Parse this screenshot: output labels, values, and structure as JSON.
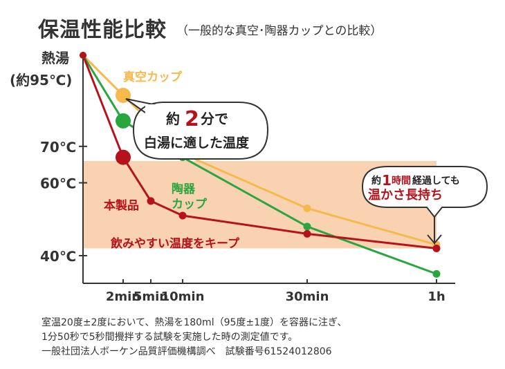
{
  "title": "保温性能比較",
  "subtitle": "（一般的な真空･陶器カップとの比較）",
  "y_top_label_1": "熱湯",
  "y_top_label_2": "(約95℃)",
  "colors": {
    "product": "#b5121b",
    "vacuum": "#f6b94c",
    "ceramic": "#2aa640",
    "band": "#f9d2b2",
    "axis": "#333333"
  },
  "chart_data": {
    "type": "line",
    "title": "保温性能比較",
    "ytick_labels": [
      "70℃",
      "60℃",
      "40℃"
    ],
    "xtick_labels": [
      "2min",
      "5min",
      "10min",
      "30min",
      "1h"
    ],
    "x_ticks_min": [
      2,
      5,
      10,
      30,
      60
    ],
    "ylim": [
      32,
      95
    ],
    "band": {
      "from": 42,
      "to": 66,
      "label": "飲みやすい温度をキープ"
    },
    "series": [
      {
        "name": "真空カップ",
        "key": "vacuum",
        "x": [
          0,
          2,
          10,
          30,
          60
        ],
        "y": [
          95,
          84,
          68,
          53,
          43
        ]
      },
      {
        "name": "陶器カップ",
        "key": "ceramic",
        "label_lines": [
          "陶器",
          "カップ"
        ],
        "x": [
          0,
          2,
          10,
          30,
          60
        ],
        "y": [
          95,
          77,
          67,
          48,
          35
        ]
      },
      {
        "name": "本製品",
        "key": "product",
        "x": [
          0,
          2,
          5,
          10,
          30,
          60
        ],
        "y": [
          95,
          67,
          55,
          51,
          46,
          42
        ]
      }
    ]
  },
  "callout_1": {
    "pre": "約",
    "num": "2",
    "unit": "分で",
    "line2": "白湯に適した温度"
  },
  "callout_2": {
    "pre": "約",
    "num": "1",
    "mid": "時間",
    "post": "経過しても",
    "line2": "温かさ長持ち"
  },
  "notes": [
    "室温20度±2度において、熱湯を180ml（95度±1度）を容器に注ぎ、",
    "1分50秒で5秒間攪拌する試験を実施した時の測定値です。",
    "一般社団法人ボーケン品質評価機構調べ　試験番号61524012806"
  ]
}
